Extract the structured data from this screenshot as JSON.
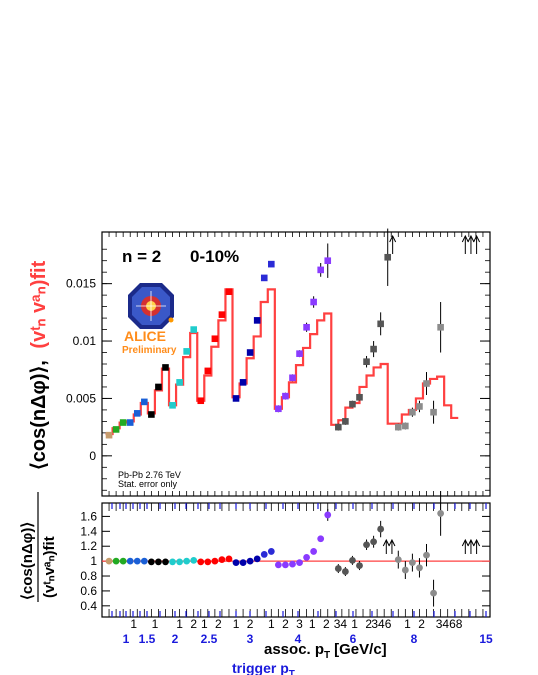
{
  "header": {
    "harmonic": "n = 2",
    "centrality": "0-10%"
  },
  "logo": {
    "text": "ALICE",
    "subtext": "Preliminary"
  },
  "notes": {
    "system": "Pb-Pb 2.76 TeV",
    "errors": "Stat. error only"
  },
  "axes": {
    "top_ylabel_black": "⟨cos(nΔφ)⟩,",
    "top_ylabel_red": "(vᵗₙ vᵃₙ)fit",
    "ratio_ylabel_num": "⟨cos(nΔφ)⟩",
    "ratio_ylabel_den": "(vᵗₙvᵃₙ)fit",
    "xlabel_assoc": "assoc. p",
    "xlabel_sub": "T",
    "xlabel_unit": "[GeV/c]",
    "xlabel_trigger": "trigger p",
    "assoc_ticks": [
      "1",
      "1",
      "1",
      "2",
      "1",
      "2",
      "1",
      "2",
      "1",
      "2",
      "3",
      "1",
      "2",
      "34",
      "1",
      "2",
      "346",
      "1",
      "2",
      "3468"
    ],
    "trigger_ticks": [
      "1",
      "1.5",
      "2",
      "2.5",
      "3",
      "4",
      "6",
      "8",
      "15"
    ],
    "top_y_ticks": [
      "0",
      "0.005",
      "0.01",
      "0.015"
    ],
    "ratio_y_ticks": [
      "0.4",
      "0.6",
      "0.8",
      "1",
      "1.2",
      "1.4",
      "1.6"
    ]
  },
  "colors": {
    "fit": "#ff4040",
    "blue_axis": "#1a1adc",
    "bins": [
      "#c69c6d",
      "#22aa22",
      "#1a5fd6",
      "#000000",
      "#20cccc",
      "#ff0000",
      "#0000aa",
      "#2b2bd6",
      "#8a3bff",
      "#555555",
      "#8c8c8c"
    ]
  },
  "chart_data": {
    "type": "scatter",
    "top_panel": {
      "ylim": [
        -0.0035,
        0.0195
      ],
      "points": [
        {
          "x": 1,
          "y": 0.0018,
          "c": 0
        },
        {
          "x": 2,
          "y": 0.0023,
          "c": 1
        },
        {
          "x": 3,
          "y": 0.0029,
          "c": 1
        },
        {
          "x": 4,
          "y": 0.0029,
          "c": 2
        },
        {
          "x": 5,
          "y": 0.0037,
          "c": 2
        },
        {
          "x": 6,
          "y": 0.0047,
          "c": 2
        },
        {
          "x": 7,
          "y": 0.0036,
          "c": 3
        },
        {
          "x": 8,
          "y": 0.006,
          "c": 3
        },
        {
          "x": 9,
          "y": 0.0077,
          "c": 3
        },
        {
          "x": 10,
          "y": 0.0044,
          "c": 4
        },
        {
          "x": 11,
          "y": 0.0064,
          "c": 4
        },
        {
          "x": 12,
          "y": 0.0091,
          "c": 4
        },
        {
          "x": 13,
          "y": 0.011,
          "c": 4
        },
        {
          "x": 14,
          "y": 0.0048,
          "c": 5
        },
        {
          "x": 15,
          "y": 0.0074,
          "c": 5
        },
        {
          "x": 16,
          "y": 0.0102,
          "c": 5
        },
        {
          "x": 17,
          "y": 0.0123,
          "c": 5
        },
        {
          "x": 18,
          "y": 0.0143,
          "c": 5
        },
        {
          "x": 19,
          "y": 0.005,
          "c": 6
        },
        {
          "x": 20,
          "y": 0.0064,
          "c": 6
        },
        {
          "x": 21,
          "y": 0.009,
          "c": 6
        },
        {
          "x": 22,
          "y": 0.0118,
          "c": 6
        },
        {
          "x": 23,
          "y": 0.0155,
          "c": 7
        },
        {
          "x": 24,
          "y": 0.0167,
          "c": 7
        },
        {
          "x": 25,
          "y": 0.0041,
          "c": 8,
          "e": 0.0003
        },
        {
          "x": 26,
          "y": 0.0052,
          "c": 8,
          "e": 0.0003
        },
        {
          "x": 27,
          "y": 0.0068,
          "c": 8,
          "e": 0.0003
        },
        {
          "x": 28,
          "y": 0.0089,
          "c": 8,
          "e": 0.0003
        },
        {
          "x": 29,
          "y": 0.0112,
          "c": 8,
          "e": 0.0004
        },
        {
          "x": 30,
          "y": 0.0134,
          "c": 8,
          "e": 0.0005
        },
        {
          "x": 31,
          "y": 0.0162,
          "c": 8,
          "e": 0.0006
        },
        {
          "x": 32,
          "y": 0.017,
          "c": 8,
          "e": 0.0015
        },
        {
          "x": 33.5,
          "y": 0.0025,
          "c": 9,
          "e": 0.0003
        },
        {
          "x": 34.5,
          "y": 0.003,
          "c": 9,
          "e": 0.0003
        },
        {
          "x": 35.5,
          "y": 0.0045,
          "c": 9,
          "e": 0.0003
        },
        {
          "x": 36.5,
          "y": 0.0051,
          "c": 9,
          "e": 0.0003
        },
        {
          "x": 37.5,
          "y": 0.0082,
          "c": 9,
          "e": 0.0005
        },
        {
          "x": 38.5,
          "y": 0.0093,
          "c": 9,
          "e": 0.0007
        },
        {
          "x": 39.5,
          "y": 0.0115,
          "c": 9,
          "e": 0.001
        },
        {
          "x": 40.5,
          "y": 0.0173,
          "c": 9,
          "e": 0.0025
        },
        {
          "x": 42,
          "y": 0.0025,
          "c": 10,
          "e": 0.0003
        },
        {
          "x": 43,
          "y": 0.0026,
          "c": 10,
          "e": 0.0003
        },
        {
          "x": 44,
          "y": 0.0038,
          "c": 10,
          "e": 0.0004
        },
        {
          "x": 45,
          "y": 0.0043,
          "c": 10,
          "e": 0.0005
        },
        {
          "x": 46,
          "y": 0.0063,
          "c": 10,
          "e": 0.001
        },
        {
          "x": 47,
          "y": 0.0038,
          "c": 10,
          "e": 0.001
        },
        {
          "x": 48,
          "y": 0.0112,
          "c": 10,
          "e": 0.0022
        }
      ],
      "fit": [
        0.0019,
        0.0024,
        0.0029,
        0.003,
        0.0036,
        0.0046,
        0.0037,
        0.0057,
        0.0076,
        0.0044,
        0.0062,
        0.0086,
        0.0107,
        0.0048,
        0.007,
        0.0095,
        0.0118,
        0.0145,
        0.0051,
        0.0063,
        0.0085,
        0.0104,
        0.0134,
        0.0145,
        0.0041,
        0.0051,
        0.0064,
        0.0079,
        0.0094,
        0.0106,
        0.0118,
        0.0124,
        0.0027,
        0.0031,
        0.0042,
        0.0046,
        0.006,
        0.007,
        0.0077,
        0.008,
        0.0028,
        0.0028,
        0.0036,
        0.004,
        0.005,
        0.0063,
        0.0067,
        0.0069,
        0.0044,
        0.0033
      ],
      "arrows_x": [
        41.2,
        51.5,
        52.3,
        53.1
      ]
    },
    "ratio_panel": {
      "ylim": [
        0.25,
        1.78
      ],
      "points": [
        {
          "x": 1,
          "y": 1.0,
          "c": 0
        },
        {
          "x": 2,
          "y": 1.0,
          "c": 1
        },
        {
          "x": 3,
          "y": 1.0,
          "c": 1
        },
        {
          "x": 4,
          "y": 1.0,
          "c": 2
        },
        {
          "x": 5,
          "y": 1.0,
          "c": 2
        },
        {
          "x": 6,
          "y": 1.0,
          "c": 2
        },
        {
          "x": 7,
          "y": 0.99,
          "c": 3
        },
        {
          "x": 8,
          "y": 0.99,
          "c": 3
        },
        {
          "x": 9,
          "y": 0.99,
          "c": 3
        },
        {
          "x": 10,
          "y": 0.99,
          "c": 4
        },
        {
          "x": 11,
          "y": 0.99,
          "c": 4
        },
        {
          "x": 12,
          "y": 1.0,
          "c": 4
        },
        {
          "x": 13,
          "y": 1.01,
          "c": 4
        },
        {
          "x": 14,
          "y": 0.99,
          "c": 5
        },
        {
          "x": 15,
          "y": 0.99,
          "c": 5
        },
        {
          "x": 16,
          "y": 1.0,
          "c": 5
        },
        {
          "x": 17,
          "y": 1.02,
          "c": 5
        },
        {
          "x": 18,
          "y": 1.03,
          "c": 5
        },
        {
          "x": 19,
          "y": 0.98,
          "c": 6
        },
        {
          "x": 20,
          "y": 0.98,
          "c": 6
        },
        {
          "x": 21,
          "y": 1.0,
          "c": 6
        },
        {
          "x": 22,
          "y": 1.03,
          "c": 6
        },
        {
          "x": 23,
          "y": 1.09,
          "c": 7
        },
        {
          "x": 24,
          "y": 1.13,
          "c": 7
        },
        {
          "x": 25,
          "y": 0.95,
          "c": 8,
          "e": 0.02
        },
        {
          "x": 26,
          "y": 0.95,
          "c": 8,
          "e": 0.02
        },
        {
          "x": 27,
          "y": 0.96,
          "c": 8,
          "e": 0.02
        },
        {
          "x": 28,
          "y": 0.98,
          "c": 8,
          "e": 0.02
        },
        {
          "x": 29,
          "y": 1.05,
          "c": 8,
          "e": 0.03
        },
        {
          "x": 30,
          "y": 1.13,
          "c": 8,
          "e": 0.03
        },
        {
          "x": 31,
          "y": 1.3,
          "c": 8,
          "e": 0.04
        },
        {
          "x": 32,
          "y": 1.62,
          "c": 8,
          "e": 0.08
        },
        {
          "x": 33.5,
          "y": 0.9,
          "c": 9,
          "e": 0.06
        },
        {
          "x": 34.5,
          "y": 0.86,
          "c": 9,
          "e": 0.06
        },
        {
          "x": 35.5,
          "y": 1.01,
          "c": 9,
          "e": 0.06
        },
        {
          "x": 36.5,
          "y": 0.94,
          "c": 9,
          "e": 0.06
        },
        {
          "x": 37.5,
          "y": 1.22,
          "c": 9,
          "e": 0.07
        },
        {
          "x": 38.5,
          "y": 1.26,
          "c": 9,
          "e": 0.08
        },
        {
          "x": 39.5,
          "y": 1.43,
          "c": 9,
          "e": 0.11
        },
        {
          "x": 42,
          "y": 1.02,
          "c": 10,
          "e": 0.12
        },
        {
          "x": 43,
          "y": 0.88,
          "c": 10,
          "e": 0.12
        },
        {
          "x": 44,
          "y": 0.98,
          "c": 10,
          "e": 0.12
        },
        {
          "x": 45,
          "y": 0.91,
          "c": 10,
          "e": 0.13
        },
        {
          "x": 46,
          "y": 1.08,
          "c": 10,
          "e": 0.15
        },
        {
          "x": 47,
          "y": 0.57,
          "c": 10,
          "e": 0.18
        },
        {
          "x": 48,
          "y": 1.64,
          "c": 10,
          "e": 0.3
        }
      ],
      "reference": 1.0,
      "arrows_x": [
        40.3,
        41.1,
        51.5,
        52.3,
        53.1
      ]
    },
    "xlim": [
      0,
      55
    ]
  }
}
